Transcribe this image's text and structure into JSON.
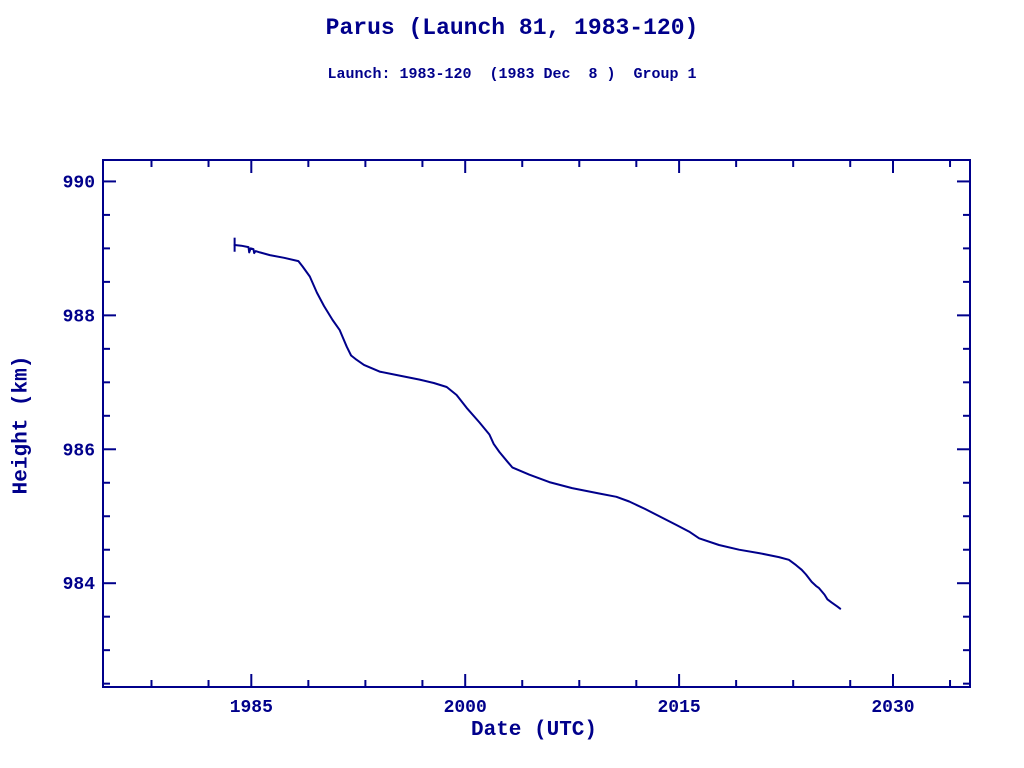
{
  "header": {
    "title": "Parus (Launch 81, 1983-120)",
    "subtitle": "Launch: 1983-120  (1983 Dec  8 )  Group 1"
  },
  "colors": {
    "ink": "#00008B",
    "background": "#FFFFFF"
  },
  "chart_data": {
    "type": "line",
    "title": "Parus (Launch 81, 1983-120)",
    "subtitle": "Launch: 1983-120  (1983 Dec  8 )  Group 1",
    "xlabel": "Date (UTC)",
    "ylabel": "Height (km)",
    "xlim": [
      1974.6,
      2035.4
    ],
    "ylim": [
      982.45,
      990.32
    ],
    "grid": false,
    "legend": null,
    "x_major_ticks": [
      1985,
      2000,
      2015,
      2030
    ],
    "x_major_tick_labels": [
      "1985",
      "2000",
      "2015",
      "2030"
    ],
    "x_minor_ticks": [
      1978,
      1982,
      1989,
      1993,
      1997,
      2004,
      2008,
      2012,
      2019,
      2023,
      2027,
      2034
    ],
    "y_major_ticks": [
      984,
      986,
      988,
      990
    ],
    "y_major_tick_labels": [
      "984",
      "986",
      "988",
      "990"
    ],
    "y_minor_ticks": [
      982.5,
      983,
      983.5,
      984.5,
      985,
      985.5,
      986.5,
      987,
      987.5,
      988.5,
      989,
      989.5
    ],
    "start_bar": {
      "x": 1983.83,
      "y_from": 989.16,
      "y_to": 988.95
    },
    "series": [
      {
        "name": "orbital-height-history",
        "x": [
          1983.83,
          1984.3,
          1984.8,
          1984.85,
          1984.95,
          1985.15,
          1985.2,
          1985.3,
          1985.6,
          1986.3,
          1987.3,
          1988.3,
          1988.6,
          1989.1,
          1989.6,
          1990.1,
          1990.7,
          1991.2,
          1991.7,
          1992.0,
          1992.3,
          1992.9,
          1994.0,
          1995.4,
          1996.8,
          1997.8,
          1998.7,
          1999.4,
          2000.1,
          2001.0,
          2001.7,
          2002.0,
          2002.4,
          2002.9,
          2003.3,
          2004.5,
          2005.9,
          2007.5,
          2009.4,
          2010.6,
          2011.5,
          2012.6,
          2013.8,
          2014.8,
          2015.7,
          2016.4,
          2017.8,
          2019.2,
          2020.6,
          2022.0,
          2022.7,
          2023.2,
          2023.6,
          2023.9,
          2024.3,
          2024.6,
          2024.8,
          2025.2,
          2025.4,
          2025.7,
          2026.1,
          2026.3
        ],
        "y": [
          989.05,
          989.04,
          989.02,
          988.94,
          989.0,
          988.99,
          988.93,
          988.96,
          988.94,
          988.9,
          988.86,
          988.81,
          988.73,
          988.58,
          988.34,
          988.14,
          987.93,
          987.78,
          987.53,
          987.4,
          987.35,
          987.26,
          987.16,
          987.1,
          987.04,
          986.99,
          986.93,
          986.81,
          986.62,
          986.4,
          986.22,
          986.08,
          985.96,
          985.83,
          985.73,
          985.62,
          985.51,
          985.42,
          985.34,
          985.29,
          985.22,
          985.11,
          984.98,
          984.87,
          984.77,
          984.67,
          984.57,
          984.5,
          984.45,
          984.39,
          984.35,
          984.27,
          984.2,
          984.13,
          984.02,
          983.96,
          983.93,
          983.83,
          983.76,
          983.71,
          983.65,
          983.62
        ]
      }
    ]
  }
}
